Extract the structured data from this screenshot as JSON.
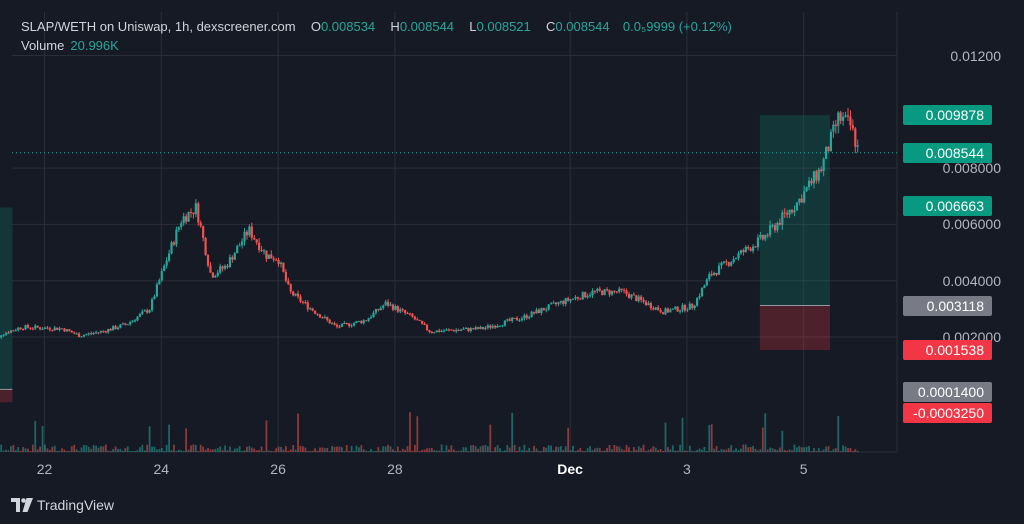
{
  "header": {
    "symbol": "SLAP/WETH on Uniswap, 1h, dexscreener.com",
    "o_key": "O",
    "o_value": "0.008534",
    "h_key": "H",
    "h_value": "0.008544",
    "l_key": "L",
    "l_value": "0.008521",
    "c_key": "C",
    "c_value": "0.008544",
    "change": "0.0₅9999 (+0.12%)",
    "volume_label": "Volume",
    "volume_value": "20.996K"
  },
  "colors": {
    "background": "#161A25",
    "up": "#26A69A",
    "down": "#EF5350",
    "grid": "#2A2E39",
    "neutral_badge": "#787B86"
  },
  "brand": {
    "name": "TradingView"
  },
  "chart_data": {
    "type": "candlestick",
    "y_axis_ticks": [
      "0.01200",
      "0.008000",
      "0.006000",
      "0.004000",
      "0.002000"
    ],
    "y_tick_values": [
      0.012,
      0.008,
      0.006,
      0.004,
      0.002
    ],
    "x_axis_ticks": [
      {
        "label": "22",
        "day": 22
      },
      {
        "label": "24",
        "day": 24
      },
      {
        "label": "26",
        "day": 26
      },
      {
        "label": "28",
        "day": 28
      },
      {
        "label": "Dec",
        "day": 31
      },
      {
        "label": "3",
        "day": 33
      },
      {
        "label": "5",
        "day": 35
      }
    ],
    "price_badges": [
      {
        "label": "0.009878",
        "value": 0.009878,
        "color": "#089981"
      },
      {
        "label": "0.008544",
        "value": 0.008544,
        "color": "#089981"
      },
      {
        "label": "0.006663",
        "value": 0.006663,
        "color": "#089981"
      },
      {
        "label": "0.003118",
        "value": 0.003118,
        "color": "#787B86"
      },
      {
        "label": "0.001538",
        "value": 0.001538,
        "color": "#F23645"
      },
      {
        "label": "0.0001400",
        "value": 0.00014,
        "color": "#787B86"
      },
      {
        "label": "-0.0003250",
        "value": -0.000325,
        "color": "#F23645"
      }
    ],
    "last_price": 0.008544,
    "price_key_points": [
      {
        "day": 21.05,
        "price": 0.00125
      },
      {
        "day": 21.25,
        "price": 0.0021
      },
      {
        "day": 21.6,
        "price": 0.00235
      },
      {
        "day": 22.3,
        "price": 0.0023
      },
      {
        "day": 22.6,
        "price": 0.00205
      },
      {
        "day": 23.0,
        "price": 0.0022
      },
      {
        "day": 23.4,
        "price": 0.00245
      },
      {
        "day": 23.8,
        "price": 0.003
      },
      {
        "day": 24.1,
        "price": 0.0048
      },
      {
        "day": 24.35,
        "price": 0.0062
      },
      {
        "day": 24.6,
        "price": 0.0066
      },
      {
        "day": 24.85,
        "price": 0.0042
      },
      {
        "day": 25.1,
        "price": 0.0045
      },
      {
        "day": 25.5,
        "price": 0.0058
      },
      {
        "day": 25.8,
        "price": 0.0049
      },
      {
        "day": 26.0,
        "price": 0.0048
      },
      {
        "day": 26.2,
        "price": 0.0036
      },
      {
        "day": 26.5,
        "price": 0.0031
      },
      {
        "day": 27.0,
        "price": 0.00235
      },
      {
        "day": 27.5,
        "price": 0.0026
      },
      {
        "day": 27.85,
        "price": 0.0032
      },
      {
        "day": 28.3,
        "price": 0.0027
      },
      {
        "day": 28.6,
        "price": 0.0022
      },
      {
        "day": 29.5,
        "price": 0.0023
      },
      {
        "day": 30.2,
        "price": 0.0027
      },
      {
        "day": 30.8,
        "price": 0.0032
      },
      {
        "day": 31.4,
        "price": 0.0036
      },
      {
        "day": 31.9,
        "price": 0.0036
      },
      {
        "day": 32.2,
        "price": 0.0033
      },
      {
        "day": 32.6,
        "price": 0.0029
      },
      {
        "day": 33.1,
        "price": 0.0031
      },
      {
        "day": 33.4,
        "price": 0.0042
      },
      {
        "day": 33.8,
        "price": 0.0048
      },
      {
        "day": 34.3,
        "price": 0.0055
      },
      {
        "day": 34.9,
        "price": 0.0068
      },
      {
        "day": 35.3,
        "price": 0.008
      },
      {
        "day": 35.6,
        "price": 0.0098
      },
      {
        "day": 35.8,
        "price": 0.0095
      },
      {
        "day": 35.95,
        "price": 0.008544
      }
    ],
    "position_boxes": [
      {
        "start_day": 21.05,
        "end_day": 21.45,
        "entry": 0.00014,
        "target": 0.0066,
        "stop": -0.00032
      },
      {
        "start_day": 34.25,
        "end_day": 35.45,
        "entry": 0.003118,
        "target": 0.009878,
        "stop": 0.001538
      }
    ]
  }
}
